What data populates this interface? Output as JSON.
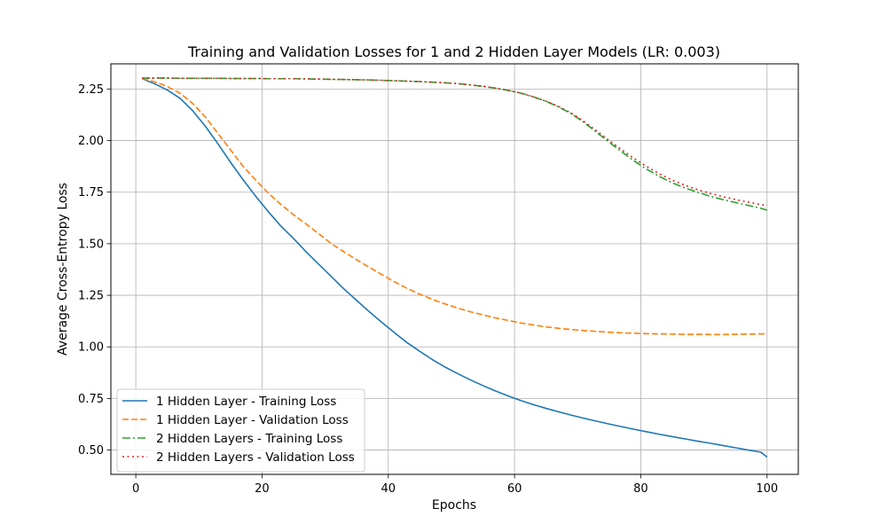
{
  "chart_data": {
    "type": "line",
    "title": "Training and Validation Losses for 1 and 2 Hidden Layer Models (LR: 0.003)",
    "xlabel": "Epochs",
    "ylabel": "Average Cross-Entropy Loss",
    "xlim": [
      -3.95,
      104.95
    ],
    "ylim": [
      0.382,
      2.372
    ],
    "xticks": [
      0,
      20,
      40,
      60,
      80,
      100
    ],
    "yticks": [
      0.5,
      0.75,
      1.0,
      1.25,
      1.5,
      1.75,
      2.0,
      2.25
    ],
    "xtick_labels": [
      "0",
      "20",
      "40",
      "60",
      "80",
      "100"
    ],
    "ytick_labels": [
      "0.50",
      "0.75",
      "1.00",
      "1.25",
      "1.50",
      "1.75",
      "2.00",
      "2.25"
    ],
    "grid": true,
    "legend_position": "lower-left",
    "x": [
      1,
      3,
      5,
      7,
      9,
      11,
      13,
      15,
      17,
      19,
      21,
      23,
      25,
      27,
      29,
      31,
      33,
      35,
      37,
      39,
      41,
      43,
      45,
      47,
      49,
      51,
      53,
      55,
      57,
      59,
      61,
      63,
      65,
      67,
      69,
      71,
      73,
      75,
      77,
      79,
      81,
      83,
      85,
      87,
      89,
      91,
      93,
      95,
      97,
      99,
      100
    ],
    "series": [
      {
        "name": "1 Hidden Layer - Training Loss",
        "color": "#1f77b4",
        "dash": "solid",
        "values": [
          2.3,
          2.275,
          2.245,
          2.205,
          2.145,
          2.07,
          1.985,
          1.895,
          1.81,
          1.73,
          1.655,
          1.585,
          1.525,
          1.46,
          1.4,
          1.34,
          1.28,
          1.225,
          1.17,
          1.118,
          1.068,
          1.02,
          0.978,
          0.938,
          0.902,
          0.87,
          0.84,
          0.812,
          0.786,
          0.762,
          0.74,
          0.72,
          0.702,
          0.685,
          0.669,
          0.654,
          0.64,
          0.626,
          0.613,
          0.6,
          0.588,
          0.576,
          0.565,
          0.554,
          0.543,
          0.533,
          0.522,
          0.511,
          0.5,
          0.49,
          0.466
        ]
      },
      {
        "name": "1 Hidden Layer - Validation Loss",
        "color": "#ff7f0e",
        "dash": "dashed",
        "values": [
          2.3,
          2.285,
          2.262,
          2.23,
          2.18,
          2.115,
          2.035,
          1.955,
          1.875,
          1.808,
          1.745,
          1.69,
          1.64,
          1.595,
          1.548,
          1.5,
          1.46,
          1.422,
          1.385,
          1.35,
          1.315,
          1.283,
          1.255,
          1.23,
          1.208,
          1.188,
          1.17,
          1.155,
          1.14,
          1.128,
          1.116,
          1.106,
          1.097,
          1.09,
          1.084,
          1.079,
          1.075,
          1.071,
          1.068,
          1.066,
          1.064,
          1.063,
          1.062,
          1.061,
          1.061,
          1.06,
          1.06,
          1.061,
          1.062,
          1.063,
          1.063
        ]
      },
      {
        "name": "2 Hidden Layers - Training Loss",
        "color": "#2ca02c",
        "dash": "dashdot",
        "values": [
          2.303,
          2.303,
          2.303,
          2.302,
          2.302,
          2.302,
          2.302,
          2.301,
          2.301,
          2.301,
          2.3,
          2.3,
          2.3,
          2.299,
          2.298,
          2.297,
          2.296,
          2.295,
          2.294,
          2.292,
          2.29,
          2.288,
          2.286,
          2.283,
          2.28,
          2.276,
          2.27,
          2.263,
          2.254,
          2.243,
          2.23,
          2.212,
          2.19,
          2.163,
          2.13,
          2.088,
          2.04,
          1.992,
          1.945,
          1.9,
          1.86,
          1.825,
          1.795,
          1.77,
          1.75,
          1.73,
          1.714,
          1.7,
          1.686,
          1.672,
          1.663
        ]
      },
      {
        "name": "2 Hidden Layers - Validation Loss",
        "color": "#d62728",
        "dash": "dotted",
        "values": [
          2.303,
          2.303,
          2.303,
          2.302,
          2.302,
          2.302,
          2.302,
          2.301,
          2.301,
          2.301,
          2.3,
          2.3,
          2.3,
          2.299,
          2.298,
          2.297,
          2.296,
          2.295,
          2.294,
          2.292,
          2.29,
          2.288,
          2.286,
          2.283,
          2.28,
          2.276,
          2.27,
          2.263,
          2.254,
          2.243,
          2.23,
          2.212,
          2.191,
          2.165,
          2.133,
          2.093,
          2.047,
          2.0,
          1.955,
          1.912,
          1.873,
          1.838,
          1.808,
          1.783,
          1.762,
          1.744,
          1.728,
          1.714,
          1.702,
          1.69,
          1.684
        ]
      }
    ]
  }
}
